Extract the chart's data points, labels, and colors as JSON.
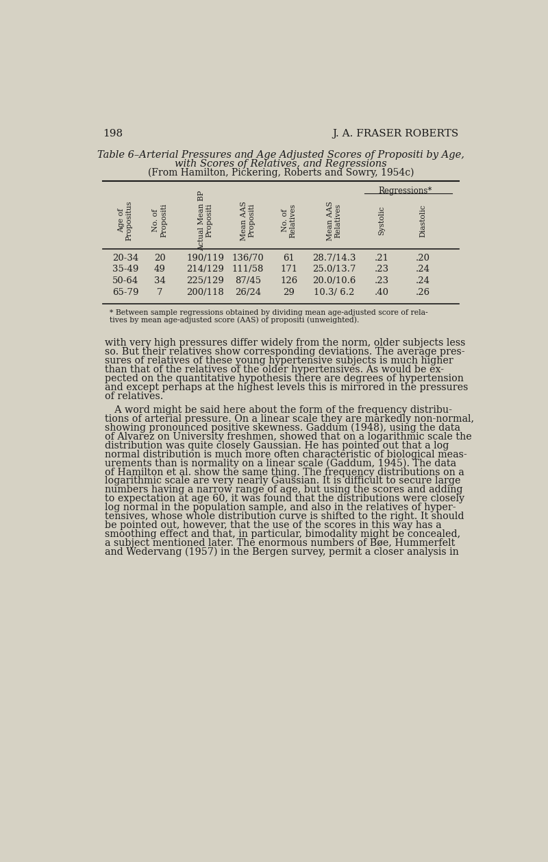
{
  "page_number": "198",
  "page_header_right": "J. A. FRASER ROBERTS",
  "background_color": "#d6d2c4",
  "text_color": "#1a1a1a",
  "table_title_line1_normal": "Table 6–",
  "table_title_line1_italic": "Arterial Pressures and Age Adjusted Scores of Propositi by Age,",
  "table_title_line2_italic": "with Scores of Relatives, and Regressions",
  "table_title_line3": "(From Hamilton, Pickering, Roberts and Sowry, 1954c)",
  "regressions_label": "Regressions*",
  "col_headers": [
    "Age of\nPropositus",
    "No. of\nPropositi",
    "Actual Mean BP\nPropositi",
    "Mean AAS\nPropositi",
    "No. of\nRelatives",
    "Mean AAS\nRelatives",
    "Systolic",
    "Diastolic"
  ],
  "table_data": [
    [
      "20-34",
      "20",
      "190/119",
      "136/70",
      "61",
      "28.7/14.3",
      ".21",
      ".20"
    ],
    [
      "35-49",
      "49",
      "214/129",
      "111/58",
      "171",
      "25.0/13.7",
      ".23",
      ".24"
    ],
    [
      "50-64",
      "34",
      "225/129",
      "87/45",
      "126",
      "20.0/10.6",
      ".23",
      ".24"
    ],
    [
      "65-79",
      "7",
      "200/118",
      "26/24",
      "29",
      "10.3/ 6.2",
      ".40",
      ".26"
    ]
  ],
  "footnote_line1": "* Between sample regressions obtained by dividing mean age-adjusted score of rela-",
  "footnote_line2": "tives by mean age-adjusted score (AAS) of propositi (unweighted).",
  "para1_lines": [
    "with very high pressures differ widely from the norm, older subjects less",
    "so. But their relatives show corresponding deviations. The average pres-",
    "sures of relatives of these young hypertensive subjects is much higher",
    "than that of the relatives of the older hypertensives. As would be ex-",
    "pected on the quantitative hypothesis there are degrees of hypertension",
    "and except perhaps at the highest levels this is mirrored in the pressures",
    "of relatives."
  ],
  "para2_lines": [
    " A word might be said here about the form of the frequency distribu-",
    "tions of arterial pressure. On a linear scale they are markedly non-normal,",
    "showing pronounced positive skewness. Gaddum (1948), using the data",
    "of Alvarez on University freshmen, showed that on a logarithmic scale the",
    "distribution was quite closely Gaussian. He has pointed out that a log",
    "normal distribution is much more often characteristic of biological meas-",
    "urements than is normality on a linear scale (Gaddum, 1945). The data",
    "of Hamilton et al. show the same thing. The frequency distributions on a",
    "logarithmic scale are very nearly Gaussian. It is difficult to secure large",
    "numbers having a narrow range of age, but using the scores and adding",
    "to expectation at age 60, it was found that the distributions were closely",
    "log normal in the population sample, and also in the relatives of hyper-",
    "tensives, whose whole distribution curve is shifted to the right. It should",
    "be pointed out, however, that the use of the scores in this way has a",
    "smoothing effect and that, in particular, bimodality might be concealed,",
    "a subject mentioned later. The enormous numbers of Bøe, Hummerfelt",
    "and Wedervang (1957) in the Bergen survey, permit a closer analysis in"
  ]
}
